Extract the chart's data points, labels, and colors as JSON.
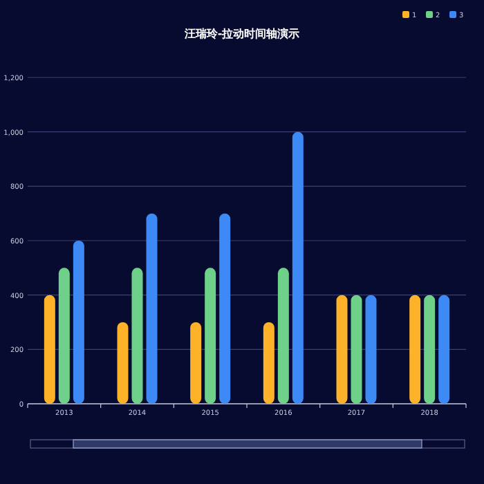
{
  "chart_data": {
    "type": "bar",
    "title": "汪瑞玲-拉动时间轴演示",
    "categories": [
      "2013",
      "2014",
      "2015",
      "2016",
      "2017",
      "2018"
    ],
    "series": [
      {
        "name": "1",
        "color": "#fdb22a",
        "values": [
          400,
          300,
          300,
          300,
          400,
          400
        ]
      },
      {
        "name": "2",
        "color": "#6fd08a",
        "values": [
          500,
          500,
          500,
          500,
          400,
          400
        ]
      },
      {
        "name": "3",
        "color": "#3d8af7",
        "values": [
          600,
          700,
          700,
          1000,
          400,
          400
        ]
      }
    ],
    "ylim": [
      0,
      1200
    ],
    "yticks": [
      0,
      200,
      400,
      600,
      800,
      {
        "value": 1000,
        "label": "1,000"
      },
      {
        "value": 1200,
        "label": "1,200"
      }
    ],
    "grid": "y",
    "legend": "top right"
  }
}
